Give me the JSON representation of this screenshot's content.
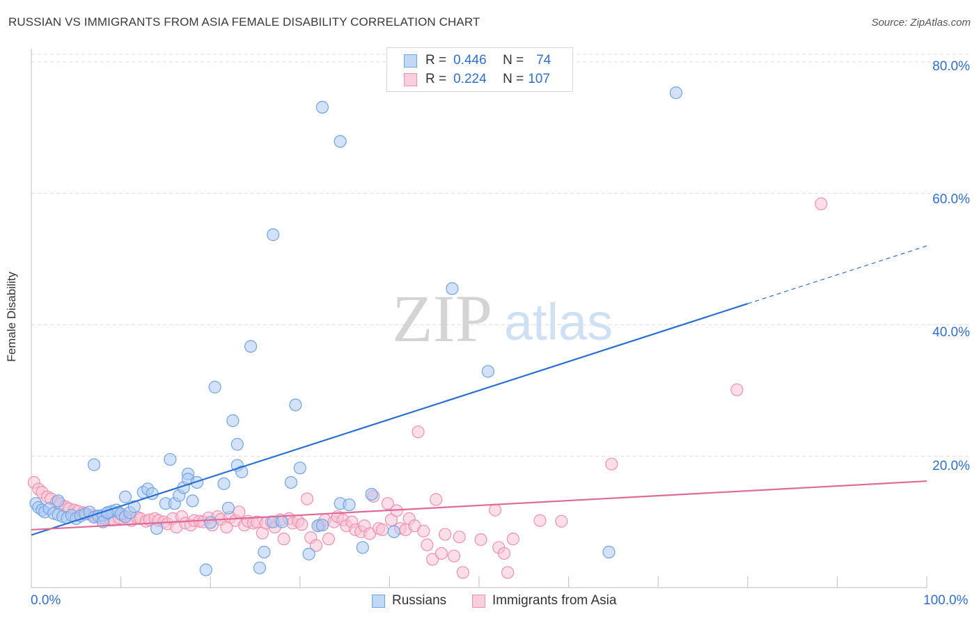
{
  "title": "RUSSIAN VS IMMIGRANTS FROM ASIA FEMALE DISABILITY CORRELATION CHART",
  "source": "Source: ZipAtlas.com",
  "watermark": {
    "zip": "ZIP",
    "atlas": "atlas"
  },
  "legend_top": {
    "rows": [
      {
        "r_key": "R =",
        "r_value": "0.446",
        "n_key": "N =",
        "n_value": "74"
      },
      {
        "r_key": "R =",
        "r_value": "0.224",
        "n_key": "N =",
        "n_value": "107"
      }
    ]
  },
  "chart_data": {
    "type": "scatter",
    "title": "RUSSIAN VS IMMIGRANTS FROM ASIA FEMALE DISABILITY CORRELATION CHART",
    "xlabel": "",
    "ylabel": "Female Disability",
    "xlim": [
      0,
      100
    ],
    "ylim": [
      0,
      82
    ],
    "x_tick_labels": [
      "0.0%",
      "100.0%"
    ],
    "y_ticks": [
      20,
      40,
      60,
      80
    ],
    "y_tick_labels": [
      "20.0%",
      "40.0%",
      "60.0%",
      "80.0%"
    ],
    "grid": "horizontal dashed",
    "legend_position": "top-center and bottom",
    "series": [
      {
        "name": "Russians",
        "color": "#6fa3e8",
        "fill": "#aecbf2",
        "trend_color": "#2a6fd1",
        "r": 0.446,
        "n": 74,
        "trend": {
          "x0": 0,
          "y0": 8.0,
          "x1": 80,
          "y1": 43.2,
          "dashed_to_x": 100,
          "dashed_to_y": 52.0
        },
        "points": [
          [
            0.5,
            12.8
          ],
          [
            0.8,
            12.2
          ],
          [
            1.2,
            11.8
          ],
          [
            1.5,
            11.5
          ],
          [
            2.0,
            12.0
          ],
          [
            2.5,
            11.3
          ],
          [
            3.0,
            11.1
          ],
          [
            3.5,
            10.8
          ],
          [
            4.0,
            10.6
          ],
          [
            4.5,
            11.0
          ],
          [
            5.0,
            10.5
          ],
          [
            5.5,
            10.9
          ],
          [
            6.0,
            11.2
          ],
          [
            6.5,
            11.5
          ],
          [
            7.0,
            10.7
          ],
          [
            7.5,
            10.9
          ],
          [
            8.0,
            11.0
          ],
          [
            8.5,
            11.3
          ],
          [
            9.0,
            11.6
          ],
          [
            9.5,
            11.8
          ],
          [
            10.0,
            11.2
          ],
          [
            10.5,
            10.8
          ],
          [
            11.0,
            11.4
          ],
          [
            7.0,
            18.7
          ],
          [
            8.0,
            10.0
          ],
          [
            8.5,
            11.4
          ],
          [
            10.5,
            13.8
          ],
          [
            11.5,
            12.3
          ],
          [
            12.5,
            14.5
          ],
          [
            13.0,
            15.0
          ],
          [
            13.5,
            14.3
          ],
          [
            14.0,
            9.0
          ],
          [
            15.0,
            12.8
          ],
          [
            15.5,
            19.5
          ],
          [
            16.0,
            12.8
          ],
          [
            16.5,
            14.0
          ],
          [
            17.0,
            15.2
          ],
          [
            17.5,
            17.3
          ],
          [
            17.5,
            16.5
          ],
          [
            18.0,
            13.2
          ],
          [
            18.5,
            16.0
          ],
          [
            19.5,
            2.7
          ],
          [
            20.5,
            30.5
          ],
          [
            20.0,
            9.9
          ],
          [
            21.5,
            15.8
          ],
          [
            22.0,
            12.1
          ],
          [
            22.5,
            25.4
          ],
          [
            23.0,
            18.6
          ],
          [
            23.0,
            21.8
          ],
          [
            23.5,
            17.6
          ],
          [
            24.5,
            36.7
          ],
          [
            25.5,
            3.0
          ],
          [
            26.0,
            5.4
          ],
          [
            27.0,
            53.7
          ],
          [
            27.0,
            10.0
          ],
          [
            28.0,
            10.0
          ],
          [
            29.0,
            16.0
          ],
          [
            29.5,
            27.8
          ],
          [
            30.0,
            18.2
          ],
          [
            31.0,
            5.1
          ],
          [
            32.0,
            9.4
          ],
          [
            32.5,
            73.1
          ],
          [
            32.5,
            9.5
          ],
          [
            34.5,
            67.9
          ],
          [
            34.5,
            12.8
          ],
          [
            35.5,
            12.6
          ],
          [
            37.0,
            6.1
          ],
          [
            38.0,
            14.2
          ],
          [
            40.5,
            8.5
          ],
          [
            47.0,
            45.5
          ],
          [
            51.0,
            32.9
          ],
          [
            64.5,
            5.4
          ],
          [
            72.0,
            75.3
          ],
          [
            3.0,
            13.2
          ]
        ]
      },
      {
        "name": "Immigrants from Asia",
        "color": "#f08fb0",
        "fill": "#f7c3d4",
        "trend_color": "#e06a95",
        "r": 0.224,
        "n": 107,
        "trend": {
          "x0": 0,
          "y0": 8.8,
          "x1": 100,
          "y1": 16.2
        },
        "points": [
          [
            0.3,
            16.0
          ],
          [
            0.8,
            15.0
          ],
          [
            1.2,
            14.5
          ],
          [
            1.8,
            13.8
          ],
          [
            2.2,
            13.5
          ],
          [
            2.8,
            13.0
          ],
          [
            3.2,
            12.8
          ],
          [
            3.8,
            12.3
          ],
          [
            4.2,
            12.0
          ],
          [
            4.8,
            11.8
          ],
          [
            5.2,
            11.6
          ],
          [
            5.8,
            11.4
          ],
          [
            6.2,
            11.2
          ],
          [
            6.8,
            11.0
          ],
          [
            7.2,
            10.8
          ],
          [
            7.8,
            10.6
          ],
          [
            8.2,
            10.5
          ],
          [
            8.8,
            10.4
          ],
          [
            9.2,
            10.3
          ],
          [
            9.8,
            10.6
          ],
          [
            10.2,
            11.0
          ],
          [
            10.8,
            10.4
          ],
          [
            11.2,
            10.2
          ],
          [
            11.8,
            10.7
          ],
          [
            12.2,
            10.5
          ],
          [
            12.8,
            10.1
          ],
          [
            13.2,
            10.3
          ],
          [
            13.8,
            10.5
          ],
          [
            14.2,
            10.2
          ],
          [
            14.8,
            10.0
          ],
          [
            15.2,
            9.7
          ],
          [
            15.8,
            10.5
          ],
          [
            16.2,
            9.2
          ],
          [
            16.8,
            10.8
          ],
          [
            17.2,
            9.8
          ],
          [
            17.8,
            9.5
          ],
          [
            18.2,
            10.2
          ],
          [
            18.8,
            10.1
          ],
          [
            19.2,
            10.0
          ],
          [
            19.8,
            10.6
          ],
          [
            20.2,
            9.5
          ],
          [
            20.8,
            10.8
          ],
          [
            21.2,
            10.4
          ],
          [
            21.8,
            9.2
          ],
          [
            22.2,
            10.7
          ],
          [
            22.8,
            10.2
          ],
          [
            23.2,
            11.5
          ],
          [
            23.8,
            9.5
          ],
          [
            24.2,
            10.1
          ],
          [
            24.8,
            9.8
          ],
          [
            25.2,
            10.0
          ],
          [
            25.8,
            8.3
          ],
          [
            26.2,
            9.8
          ],
          [
            26.8,
            10.0
          ],
          [
            27.2,
            9.2
          ],
          [
            27.8,
            10.3
          ],
          [
            28.2,
            7.4
          ],
          [
            28.8,
            10.5
          ],
          [
            29.2,
            9.8
          ],
          [
            29.8,
            10.1
          ],
          [
            30.2,
            9.6
          ],
          [
            30.8,
            13.5
          ],
          [
            31.2,
            7.6
          ],
          [
            31.8,
            6.4
          ],
          [
            32.2,
            9.5
          ],
          [
            32.8,
            10.3
          ],
          [
            33.2,
            7.4
          ],
          [
            33.8,
            10.0
          ],
          [
            34.2,
            10.8
          ],
          [
            34.8,
            10.3
          ],
          [
            35.2,
            9.4
          ],
          [
            35.8,
            10.0
          ],
          [
            36.2,
            8.8
          ],
          [
            36.8,
            8.5
          ],
          [
            37.2,
            9.4
          ],
          [
            37.8,
            8.2
          ],
          [
            38.2,
            13.9
          ],
          [
            38.8,
            9.0
          ],
          [
            39.2,
            8.8
          ],
          [
            39.8,
            12.8
          ],
          [
            40.2,
            10.3
          ],
          [
            40.8,
            11.7
          ],
          [
            41.2,
            9.0
          ],
          [
            41.8,
            8.8
          ],
          [
            42.2,
            10.5
          ],
          [
            42.8,
            9.4
          ],
          [
            43.2,
            23.7
          ],
          [
            43.8,
            8.6
          ],
          [
            44.2,
            6.5
          ],
          [
            44.8,
            4.3
          ],
          [
            45.2,
            13.4
          ],
          [
            45.8,
            5.2
          ],
          [
            46.2,
            8.1
          ],
          [
            47.2,
            4.8
          ],
          [
            47.8,
            7.7
          ],
          [
            48.2,
            2.3
          ],
          [
            50.2,
            7.3
          ],
          [
            51.8,
            11.8
          ],
          [
            52.2,
            6.1
          ],
          [
            52.8,
            5.2
          ],
          [
            53.2,
            2.3
          ],
          [
            53.8,
            7.4
          ],
          [
            56.8,
            10.2
          ],
          [
            59.2,
            10.1
          ],
          [
            64.8,
            18.8
          ],
          [
            78.8,
            30.1
          ],
          [
            88.2,
            58.4
          ]
        ]
      }
    ]
  }
}
